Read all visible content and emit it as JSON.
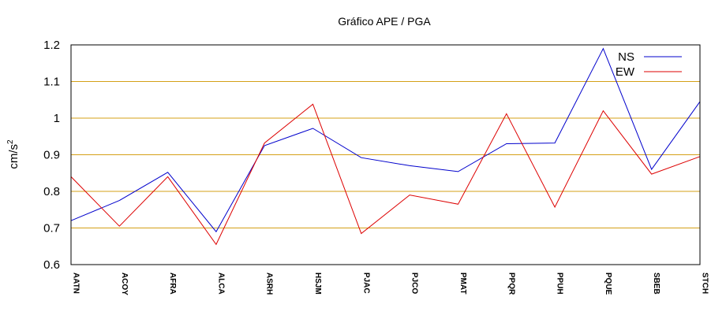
{
  "chart_data": {
    "type": "line",
    "title": "Gráfico  APE / PGA",
    "ylabel_base": "cm/s",
    "ylabel_exp": "2",
    "xlabel": "",
    "categories": [
      "AATN",
      "ACOY",
      "AFRA",
      "ALCA",
      "ASRH",
      "HSJM",
      "PJAC",
      "PJCO",
      "PMAT",
      "PPQR",
      "PPUH",
      "PQUE",
      "SBEB",
      "STCH"
    ],
    "ylim": [
      0.6,
      1.2
    ],
    "yticks": [
      "0.6",
      "0.7",
      "0.8",
      "0.9",
      "1",
      "1.1",
      "1.2"
    ],
    "grid": true,
    "legend_position": "top-right",
    "series": [
      {
        "name": "NS",
        "color": "#0000cc",
        "values": [
          0.72,
          0.775,
          0.852,
          0.69,
          0.925,
          0.972,
          0.892,
          0.87,
          0.854,
          0.93,
          0.932,
          1.19,
          0.86,
          1.045
        ]
      },
      {
        "name": "EW",
        "color": "#dd0000",
        "values": [
          0.84,
          0.705,
          0.84,
          0.655,
          0.932,
          1.038,
          0.685,
          0.79,
          0.765,
          1.012,
          0.757,
          1.02,
          0.847,
          0.895
        ]
      }
    ],
    "grid_color": "#d4a017"
  }
}
